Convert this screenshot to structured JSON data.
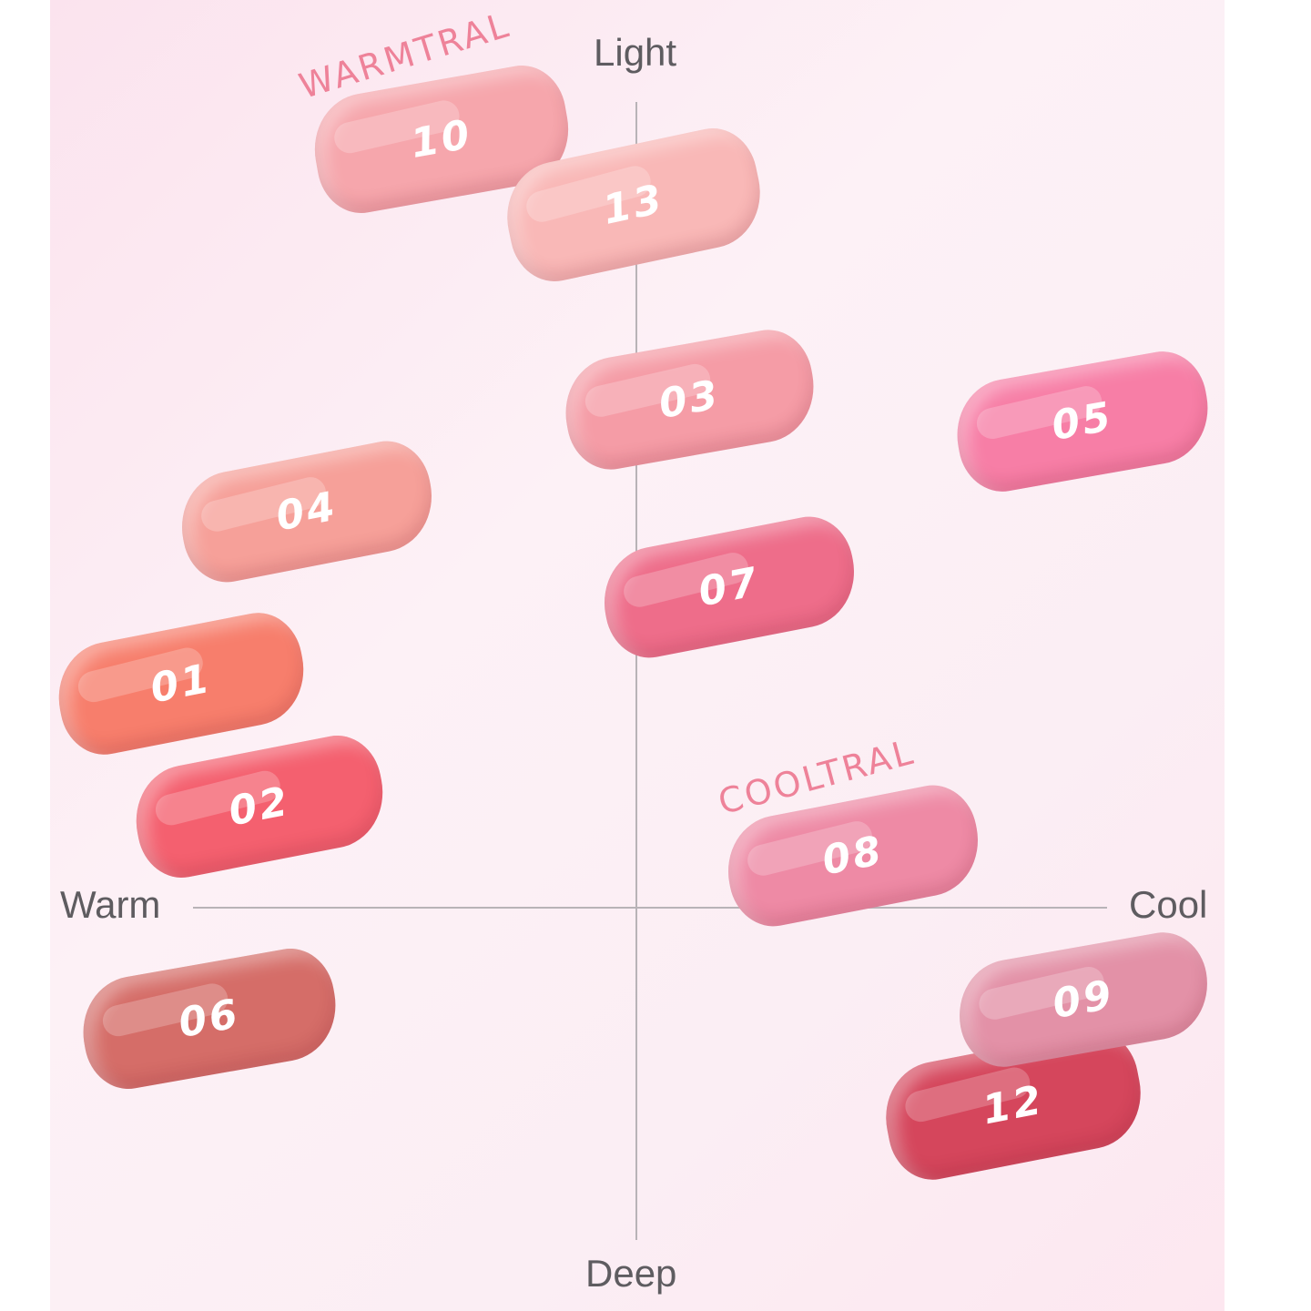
{
  "axes": {
    "top": "Light",
    "bottom": "Deep",
    "left": "Warm",
    "right": "Cool"
  },
  "groups": {
    "warmtral": "WARMTRAL",
    "cooltral": "COOLTRAL"
  },
  "shades": [
    {
      "code": "10",
      "color": "#f6a6ac"
    },
    {
      "code": "13",
      "color": "#f9b8b7"
    },
    {
      "code": "03",
      "color": "#f59ca6"
    },
    {
      "code": "05",
      "color": "#f77ea6"
    },
    {
      "code": "04",
      "color": "#f6a099"
    },
    {
      "code": "07",
      "color": "#ee6d8a"
    },
    {
      "code": "01",
      "color": "#f77e6c"
    },
    {
      "code": "02",
      "color": "#f4606f"
    },
    {
      "code": "08",
      "color": "#ee8aa5"
    },
    {
      "code": "06",
      "color": "#d56d68"
    },
    {
      "code": "09",
      "color": "#e391a7"
    },
    {
      "code": "12",
      "color": "#d5465c"
    }
  ]
}
